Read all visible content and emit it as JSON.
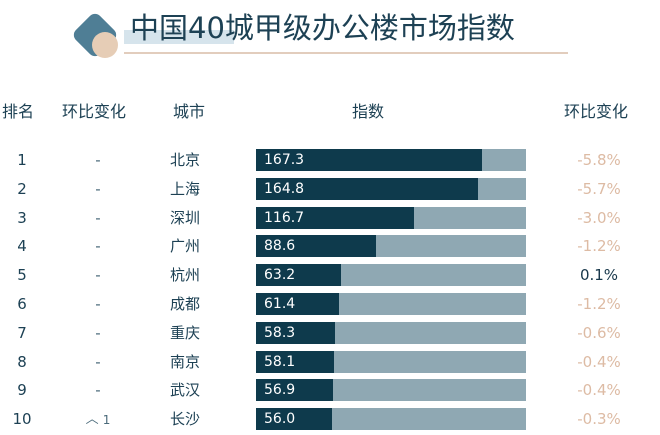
{
  "title": "中国40城甲级办公楼市场指数",
  "colors": {
    "bar_fill": "#0e3a4c",
    "bar_track": "#8fa8b3",
    "negative_change": "#ddbba4",
    "positive_change": "#17374a",
    "logo_primary": "#4f7e95",
    "logo_secondary": "#e6cdb6"
  },
  "headers": {
    "rank": "排名",
    "rank_change": "环比变化",
    "city": "城市",
    "index": "指数",
    "pct_change": "环比变化"
  },
  "chart_data": {
    "type": "bar",
    "orientation": "horizontal",
    "title": "中国40城甲级办公楼市场指数",
    "xlim": [
      0,
      200
    ],
    "categories": [
      "北京",
      "上海",
      "深圳",
      "广州",
      "杭州",
      "成都",
      "重庆",
      "南京",
      "武汉",
      "长沙"
    ],
    "values": [
      167.3,
      164.8,
      116.7,
      88.6,
      63.2,
      61.4,
      58.3,
      58.1,
      56.9,
      56.0
    ],
    "rows": [
      {
        "rank": "1",
        "rank_change": "-",
        "city": "北京",
        "index": "167.3",
        "value": 167.3,
        "pct_change": "-5.8%",
        "trend": "neg"
      },
      {
        "rank": "2",
        "rank_change": "-",
        "city": "上海",
        "index": "164.8",
        "value": 164.8,
        "pct_change": "-5.7%",
        "trend": "neg"
      },
      {
        "rank": "3",
        "rank_change": "-",
        "city": "深圳",
        "index": "116.7",
        "value": 116.7,
        "pct_change": "-3.0%",
        "trend": "neg"
      },
      {
        "rank": "4",
        "rank_change": "-",
        "city": "广州",
        "index": "88.6",
        "value": 88.6,
        "pct_change": "-1.2%",
        "trend": "neg"
      },
      {
        "rank": "5",
        "rank_change": "-",
        "city": "杭州",
        "index": "63.2",
        "value": 63.2,
        "pct_change": "0.1%",
        "trend": "pos"
      },
      {
        "rank": "6",
        "rank_change": "-",
        "city": "成都",
        "index": "61.4",
        "value": 61.4,
        "pct_change": "-1.2%",
        "trend": "neg"
      },
      {
        "rank": "7",
        "rank_change": "-",
        "city": "重庆",
        "index": "58.3",
        "value": 58.3,
        "pct_change": "-0.6%",
        "trend": "neg"
      },
      {
        "rank": "8",
        "rank_change": "-",
        "city": "南京",
        "index": "58.1",
        "value": 58.1,
        "pct_change": "-0.4%",
        "trend": "neg"
      },
      {
        "rank": "9",
        "rank_change": "-",
        "city": "武汉",
        "index": "56.9",
        "value": 56.9,
        "pct_change": "-0.4%",
        "trend": "neg"
      },
      {
        "rank": "10",
        "rank_change": "1",
        "rank_change_icon": "up-chevron-icon",
        "city": "长沙",
        "index": "56.0",
        "value": 56.0,
        "pct_change": "-0.3%",
        "trend": "neg"
      }
    ]
  }
}
